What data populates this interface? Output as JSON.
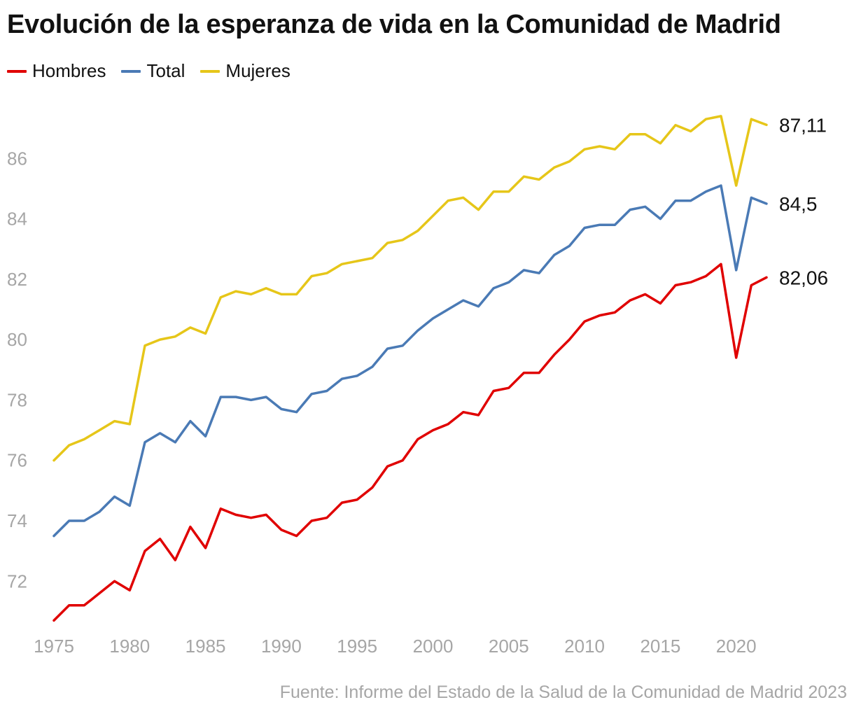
{
  "title": "Evolución de la esperanza de vida en la Comunidad de Madrid",
  "source": "Fuente: Informe del Estado de la Salud de la Comunidad de Madrid 2023",
  "legend": [
    {
      "name": "Hombres",
      "color": "#e00000"
    },
    {
      "name": "Total",
      "color": "#4a7ab5"
    },
    {
      "name": "Mujeres",
      "color": "#e6c619"
    }
  ],
  "chart_data": {
    "type": "line",
    "title": "Evolución de la esperanza de vida en la Comunidad de Madrid",
    "xlabel": "",
    "ylabel": "",
    "xlim": [
      1975,
      2022
    ],
    "ylim": [
      70.5,
      88
    ],
    "grid": false,
    "legend_position": "top-left",
    "x_ticks": [
      1975,
      1980,
      1985,
      1990,
      1995,
      2000,
      2005,
      2010,
      2015,
      2020
    ],
    "y_ticks": [
      72,
      74,
      76,
      78,
      80,
      82,
      84,
      86
    ],
    "x": [
      1975,
      1976,
      1977,
      1978,
      1979,
      1980,
      1981,
      1982,
      1983,
      1984,
      1985,
      1986,
      1987,
      1988,
      1989,
      1990,
      1991,
      1992,
      1993,
      1994,
      1995,
      1996,
      1997,
      1998,
      1999,
      2000,
      2001,
      2002,
      2003,
      2004,
      2005,
      2006,
      2007,
      2008,
      2009,
      2010,
      2011,
      2012,
      2013,
      2014,
      2015,
      2016,
      2017,
      2018,
      2019,
      2020,
      2021,
      2022
    ],
    "series": [
      {
        "name": "Hombres",
        "color": "#e00000",
        "end_label": "82,06",
        "values": [
          70.7,
          71.2,
          71.2,
          71.6,
          72.0,
          71.7,
          73.0,
          73.4,
          72.7,
          73.8,
          73.1,
          74.4,
          74.2,
          74.1,
          74.2,
          73.7,
          73.5,
          74.0,
          74.1,
          74.6,
          74.7,
          75.1,
          75.8,
          76.0,
          76.7,
          77.0,
          77.2,
          77.6,
          77.5,
          78.3,
          78.4,
          78.9,
          78.9,
          79.5,
          80.0,
          80.6,
          80.8,
          80.9,
          81.3,
          81.5,
          81.2,
          81.8,
          81.9,
          82.1,
          82.5,
          79.4,
          81.8,
          82.06
        ]
      },
      {
        "name": "Total",
        "color": "#4a7ab5",
        "end_label": "84,5",
        "values": [
          73.5,
          74.0,
          74.0,
          74.3,
          74.8,
          74.5,
          76.6,
          76.9,
          76.6,
          77.3,
          76.8,
          78.1,
          78.1,
          78.0,
          78.1,
          77.7,
          77.6,
          78.2,
          78.3,
          78.7,
          78.8,
          79.1,
          79.7,
          79.8,
          80.3,
          80.7,
          81.0,
          81.3,
          81.1,
          81.7,
          81.9,
          82.3,
          82.2,
          82.8,
          83.1,
          83.7,
          83.8,
          83.8,
          84.3,
          84.4,
          84.0,
          84.6,
          84.6,
          84.9,
          85.1,
          82.3,
          84.7,
          84.5
        ]
      },
      {
        "name": "Mujeres",
        "color": "#e6c619",
        "end_label": "87,11",
        "values": [
          76.0,
          76.5,
          76.7,
          77.0,
          77.3,
          77.2,
          79.8,
          80.0,
          80.1,
          80.4,
          80.2,
          81.4,
          81.6,
          81.5,
          81.7,
          81.5,
          81.5,
          82.1,
          82.2,
          82.5,
          82.6,
          82.7,
          83.2,
          83.3,
          83.6,
          84.1,
          84.6,
          84.7,
          84.3,
          84.9,
          84.9,
          85.4,
          85.3,
          85.7,
          85.9,
          86.3,
          86.4,
          86.3,
          86.8,
          86.8,
          86.5,
          87.1,
          86.9,
          87.3,
          87.4,
          85.1,
          87.3,
          87.11
        ]
      }
    ]
  }
}
